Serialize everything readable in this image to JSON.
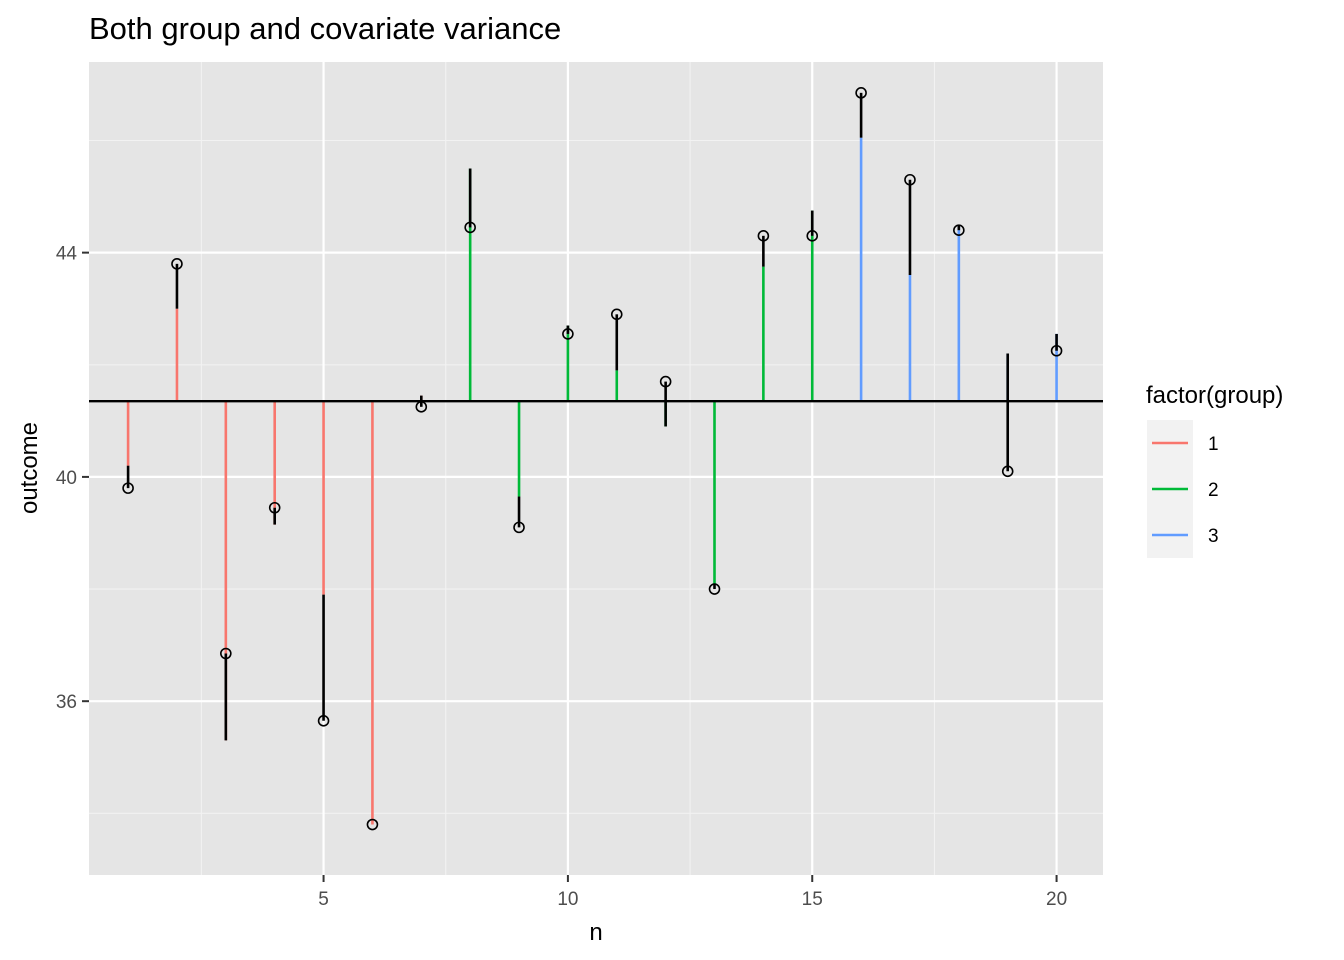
{
  "chart_data": {
    "type": "scatter",
    "title": "Both group and covariate variance",
    "xlabel": "n",
    "ylabel": "outcome",
    "xlim": [
      0.2,
      20.95
    ],
    "ylim": [
      32.9,
      47.4
    ],
    "x_ticks": [
      5,
      10,
      15,
      20
    ],
    "x_tick_labels": [
      "5",
      "10",
      "15",
      "20"
    ],
    "y_ticks": [
      36,
      40,
      44
    ],
    "y_tick_labels": [
      "36",
      "40",
      "44"
    ],
    "grid": true,
    "grand_mean": 41.35,
    "legend": {
      "title": "factor(group)",
      "placement": "right",
      "entries": [
        {
          "label": "1",
          "color": "#F8766D"
        },
        {
          "label": "2",
          "color": "#00BA38"
        },
        {
          "label": "3",
          "color": "#619CFF"
        }
      ]
    },
    "points": [
      {
        "n": 1,
        "group": "1",
        "outcome": 39.8,
        "group_effect": 40.2
      },
      {
        "n": 2,
        "group": "1",
        "outcome": 43.8,
        "group_effect": 43.0
      },
      {
        "n": 3,
        "group": "1",
        "outcome": 36.85,
        "group_effect": 35.3
      },
      {
        "n": 4,
        "group": "1",
        "outcome": 39.45,
        "group_effect": 39.15
      },
      {
        "n": 5,
        "group": "1",
        "outcome": 35.65,
        "group_effect": 37.9
      },
      {
        "n": 6,
        "group": "1",
        "outcome": 33.8,
        "group_effect": 33.8
      },
      {
        "n": 7,
        "group": "1",
        "outcome": 41.25,
        "group_effect": 41.45
      },
      {
        "n": 8,
        "group": "2",
        "outcome": 44.45,
        "group_effect": 45.5
      },
      {
        "n": 9,
        "group": "2",
        "outcome": 39.1,
        "group_effect": 39.65
      },
      {
        "n": 10,
        "group": "2",
        "outcome": 42.55,
        "group_effect": 42.7
      },
      {
        "n": 11,
        "group": "2",
        "outcome": 42.9,
        "group_effect": 41.9
      },
      {
        "n": 12,
        "group": "2",
        "outcome": 41.7,
        "group_effect": 40.9
      },
      {
        "n": 13,
        "group": "2",
        "outcome": 38.0,
        "group_effect": 38.1
      },
      {
        "n": 14,
        "group": "2",
        "outcome": 44.3,
        "group_effect": 43.75
      },
      {
        "n": 15,
        "group": "2",
        "outcome": 44.3,
        "group_effect": 44.75
      },
      {
        "n": 16,
        "group": "3",
        "outcome": 46.85,
        "group_effect": 46.05
      },
      {
        "n": 17,
        "group": "3",
        "outcome": 45.3,
        "group_effect": 43.6
      },
      {
        "n": 18,
        "group": "3",
        "outcome": 44.4,
        "group_effect": 44.5
      },
      {
        "n": 19,
        "group": "3",
        "outcome": 40.1,
        "group_effect": 42.2
      },
      {
        "n": 20,
        "group": "3",
        "outcome": 42.25,
        "group_effect": 42.55
      }
    ]
  }
}
